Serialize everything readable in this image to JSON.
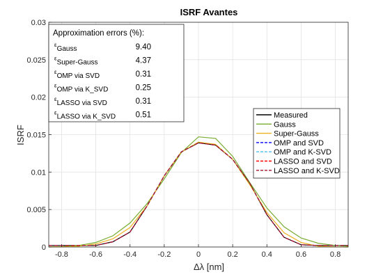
{
  "chart_data": {
    "type": "line",
    "title": "ISRF Avantes",
    "xlabel": "Δλ [nm]",
    "ylabel": "ISRF",
    "xlim": [
      -0.875,
      0.875
    ],
    "ylim": [
      0,
      0.03
    ],
    "xticks": [
      -0.8,
      -0.6,
      -0.4,
      -0.2,
      0,
      0.2,
      0.4,
      0.6,
      0.8
    ],
    "xtick_labels": [
      "-0.8",
      "-0.6",
      "-0.4",
      "-0.2",
      "0",
      "0.2",
      "0.4",
      "0.6",
      "0.8"
    ],
    "yticks": [
      0,
      0.005,
      0.01,
      0.015,
      0.02,
      0.025,
      0.03
    ],
    "ytick_labels": [
      "0",
      "0.005",
      "0.01",
      "0.015",
      "0.02",
      "0.025",
      "0.03"
    ],
    "grid": true,
    "legend_position": "right",
    "x": [
      -0.875,
      -0.8,
      -0.7,
      -0.6,
      -0.5,
      -0.4,
      -0.3,
      -0.2,
      -0.1,
      0.0,
      0.1,
      0.2,
      0.3,
      0.4,
      0.5,
      0.6,
      0.7,
      0.8,
      0.875
    ],
    "series": [
      {
        "name": "Measured",
        "color": "#000000",
        "dash": "solid",
        "values": [
          0.0002,
          0.0002,
          0.0002,
          0.0002,
          0.0007,
          0.002,
          0.0055,
          0.0095,
          0.0127,
          0.0139,
          0.0136,
          0.0117,
          0.0085,
          0.0043,
          0.0013,
          0.0003,
          0.0002,
          0.0002,
          0.0002
        ]
      },
      {
        "name": "Gauss",
        "color": "#77ac30",
        "dash": "solid",
        "values": [
          2e-05,
          5e-05,
          0.0002,
          0.0006,
          0.0015,
          0.0032,
          0.0058,
          0.0091,
          0.0126,
          0.0147,
          0.0145,
          0.0121,
          0.0086,
          0.0052,
          0.0027,
          0.0012,
          0.0005,
          0.0002,
          0.0001
        ]
      },
      {
        "name": "Super-Gauss",
        "color": "#edb120",
        "dash": "solid",
        "values": [
          0.0,
          3e-05,
          0.0001,
          0.0004,
          0.0011,
          0.0026,
          0.0055,
          0.0095,
          0.0127,
          0.014,
          0.0137,
          0.0117,
          0.0083,
          0.0046,
          0.0019,
          0.0006,
          0.0001,
          2e-05,
          0.0
        ]
      },
      {
        "name": "OMP and SVD",
        "color": "#0000ff",
        "dash": "dashed",
        "values": [
          0.0002,
          0.0002,
          0.0002,
          0.0002,
          0.0007,
          0.002,
          0.0055,
          0.0095,
          0.0127,
          0.0139,
          0.0136,
          0.0117,
          0.0085,
          0.0043,
          0.0013,
          0.0003,
          0.0002,
          0.0002,
          0.0002
        ]
      },
      {
        "name": "OMP and K-SVD",
        "color": "#4dbeee",
        "dash": "dashed",
        "values": [
          0.0002,
          0.0002,
          0.0002,
          0.0002,
          0.0007,
          0.002,
          0.0055,
          0.0095,
          0.0127,
          0.0139,
          0.0136,
          0.0117,
          0.0085,
          0.0043,
          0.0013,
          0.0003,
          0.0002,
          0.0002,
          0.0002
        ]
      },
      {
        "name": "LASSO and SVD",
        "color": "#ff0000",
        "dash": "dashed",
        "values": [
          0.0002,
          0.0002,
          0.0002,
          0.0002,
          0.0007,
          0.002,
          0.0055,
          0.0095,
          0.0127,
          0.0139,
          0.0136,
          0.0117,
          0.0085,
          0.0043,
          0.0013,
          0.0003,
          0.0002,
          0.0002,
          0.0002
        ]
      },
      {
        "name": "LASSO and K-SVD",
        "color": "#a2142f",
        "dash": "dashed",
        "values": [
          0.0002,
          0.0002,
          0.0002,
          0.0002,
          0.0007,
          0.002,
          0.0055,
          0.0095,
          0.0127,
          0.0139,
          0.0136,
          0.0117,
          0.0085,
          0.0043,
          0.0013,
          0.0003,
          0.0002,
          0.0002,
          0.0002
        ]
      }
    ],
    "annotation": {
      "title": "Approximation errors (%):",
      "rows": [
        {
          "symbol": "ε",
          "sub": "Gauss",
          "value": "9.40"
        },
        {
          "symbol": "ε",
          "sub": "Super-Gauss",
          "value": "4.37"
        },
        {
          "symbol": "ε",
          "sub": "OMP via SVD",
          "value": "0.31"
        },
        {
          "symbol": "ε",
          "sub": "OMP via K_SVD",
          "value": "0.25"
        },
        {
          "symbol": "ε",
          "sub": "LASSO via SVD",
          "value": "0.31"
        },
        {
          "symbol": "ε",
          "sub": "LASSO via K_SVD",
          "value": "0.51"
        }
      ]
    }
  }
}
